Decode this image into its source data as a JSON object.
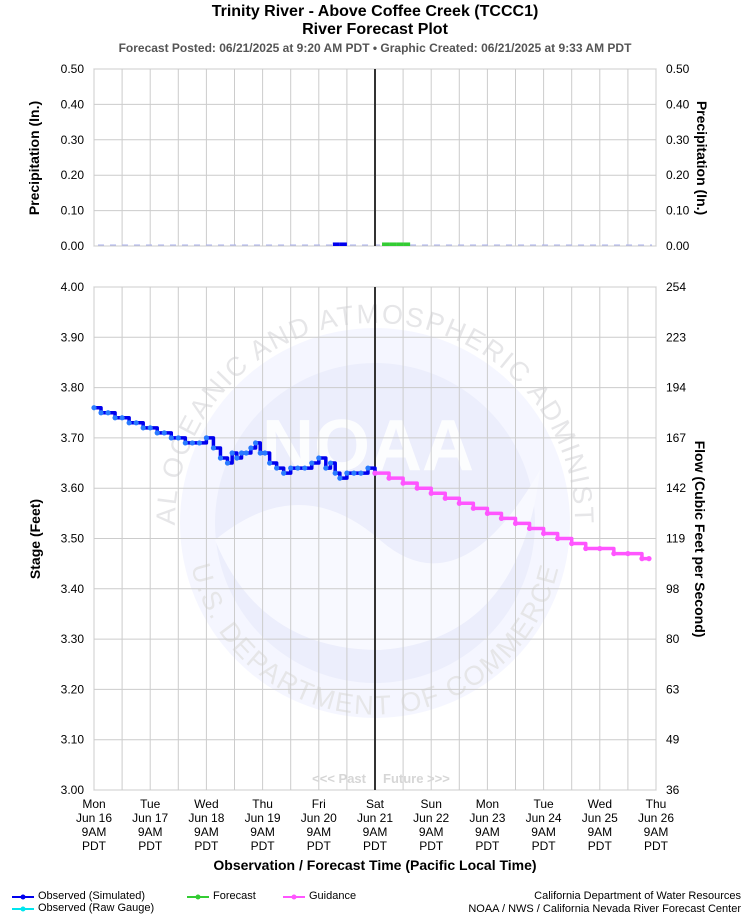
{
  "header": {
    "title_line1": "Trinity River - Above Coffee Creek (TCCC1)",
    "title_line2": "River Forecast Plot",
    "subtitle": "Forecast Posted: 06/21/2025 at 9:20 AM PDT  •  Graphic Created: 06/21/2025 at 9:33 AM PDT"
  },
  "watermark": {
    "logo_text": "NOAA",
    "ring_top": "NATIONAL OCEANIC AND ATMOSPHERIC ADMINISTRATION",
    "ring_bottom": "U.S. DEPARTMENT OF COMMERCE"
  },
  "legend": {
    "observed_simulated": "Observed (Simulated)",
    "observed_raw": "Observed (Raw Gauge)",
    "forecast": "Forecast",
    "guidance": "Guidance"
  },
  "credits": {
    "line1": "California Department of Water Resources",
    "line2": "NOAA / NWS / California Nevada River Forecast Center"
  },
  "colors": {
    "observed": "#0000ee",
    "observed_point": "#2a7bff",
    "raw_gauge": "#00e5ee",
    "forecast": "#33cc33",
    "guidance": "#ff55ff",
    "now_line": "#333333",
    "grid": "#cccccc"
  },
  "chart_data": [
    {
      "type": "bar",
      "panel": "precipitation",
      "ylabel": "Precipitation (In.)",
      "ylabel_right": "Precipitation (In.)",
      "ylim": [
        0,
        0.5
      ],
      "yticks": [
        "0.00",
        "0.10",
        "0.20",
        "0.30",
        "0.40",
        "0.50"
      ],
      "series": [
        {
          "name": "Observed (Simulated)",
          "x": [
            "2025-06-20T15:00",
            "2025-06-20T18:00"
          ],
          "values": [
            0.01,
            0.01
          ]
        },
        {
          "name": "Forecast",
          "x": [
            "2025-06-21T12:00",
            "2025-06-21T15:00",
            "2025-06-21T18:00",
            "2025-06-21T21:00"
          ],
          "values": [
            0.01,
            0.01,
            0.01,
            0.01
          ]
        }
      ],
      "grid": true
    },
    {
      "type": "line",
      "panel": "stage",
      "ylabel": "Stage (Feet)",
      "ylabel_right": "Flow (Cubic Feet per Second)",
      "xlabel": "Observation / Forecast Time (Pacific Local Time)",
      "ylim": [
        3.0,
        4.0
      ],
      "yticks": [
        "3.00",
        "3.10",
        "3.20",
        "3.30",
        "3.40",
        "3.50",
        "3.60",
        "3.70",
        "3.80",
        "3.90",
        "4.00"
      ],
      "flow_ticks": [
        "36",
        "49",
        "63",
        "80",
        "98",
        "119",
        "142",
        "167",
        "194",
        "223",
        "254"
      ],
      "xlim": [
        "2025-06-16T09:00",
        "2025-06-26T09:00"
      ],
      "xticks": [
        {
          "day": "Mon",
          "date": "Jun 16",
          "time": "9AM",
          "tz": "PDT"
        },
        {
          "day": "Tue",
          "date": "Jun 17",
          "time": "9AM",
          "tz": "PDT"
        },
        {
          "day": "Wed",
          "date": "Jun 18",
          "time": "9AM",
          "tz": "PDT"
        },
        {
          "day": "Thu",
          "date": "Jun 19",
          "time": "9AM",
          "tz": "PDT"
        },
        {
          "day": "Fri",
          "date": "Jun 20",
          "time": "9AM",
          "tz": "PDT"
        },
        {
          "day": "Sat",
          "date": "Jun 21",
          "time": "9AM",
          "tz": "PDT"
        },
        {
          "day": "Sun",
          "date": "Jun 22",
          "time": "9AM",
          "tz": "PDT"
        },
        {
          "day": "Mon",
          "date": "Jun 23",
          "time": "9AM",
          "tz": "PDT"
        },
        {
          "day": "Tue",
          "date": "Jun 24",
          "time": "9AM",
          "tz": "PDT"
        },
        {
          "day": "Wed",
          "date": "Jun 25",
          "time": "9AM",
          "tz": "PDT"
        },
        {
          "day": "Thu",
          "date": "Jun 26",
          "time": "9AM",
          "tz": "PDT"
        }
      ],
      "now": "2025-06-21T09:00",
      "past_label": "<<< Past",
      "future_label": "Future >>>",
      "grid": true,
      "series": [
        {
          "name": "Observed (Simulated)",
          "x": [
            "2025-06-16T09:00",
            "2025-06-16T12:00",
            "2025-06-16T15:00",
            "2025-06-16T18:00",
            "2025-06-16T21:00",
            "2025-06-17T00:00",
            "2025-06-17T03:00",
            "2025-06-17T06:00",
            "2025-06-17T09:00",
            "2025-06-17T12:00",
            "2025-06-17T15:00",
            "2025-06-17T18:00",
            "2025-06-17T21:00",
            "2025-06-18T00:00",
            "2025-06-18T03:00",
            "2025-06-18T06:00",
            "2025-06-18T09:00",
            "2025-06-18T12:00",
            "2025-06-18T15:00",
            "2025-06-18T18:00",
            "2025-06-18T20:00",
            "2025-06-18T22:00",
            "2025-06-19T00:00",
            "2025-06-19T02:00",
            "2025-06-19T04:00",
            "2025-06-19T06:00",
            "2025-06-19T08:00",
            "2025-06-19T10:00",
            "2025-06-19T12:00",
            "2025-06-19T15:00",
            "2025-06-19T18:00",
            "2025-06-19T21:00",
            "2025-06-20T00:00",
            "2025-06-20T03:00",
            "2025-06-20T06:00",
            "2025-06-20T09:00",
            "2025-06-20T12:00",
            "2025-06-20T14:00",
            "2025-06-20T16:00",
            "2025-06-20T18:00",
            "2025-06-20T21:00",
            "2025-06-21T00:00",
            "2025-06-21T03:00",
            "2025-06-21T06:00",
            "2025-06-21T09:00"
          ],
          "values": [
            3.76,
            3.75,
            3.75,
            3.74,
            3.74,
            3.73,
            3.73,
            3.72,
            3.72,
            3.71,
            3.71,
            3.7,
            3.7,
            3.69,
            3.69,
            3.69,
            3.7,
            3.68,
            3.66,
            3.65,
            3.67,
            3.66,
            3.67,
            3.67,
            3.68,
            3.69,
            3.67,
            3.67,
            3.65,
            3.64,
            3.63,
            3.64,
            3.64,
            3.64,
            3.65,
            3.66,
            3.64,
            3.65,
            3.63,
            3.62,
            3.63,
            3.63,
            3.63,
            3.64,
            3.63
          ]
        },
        {
          "name": "Guidance",
          "x": [
            "2025-06-21T09:00",
            "2025-06-21T15:00",
            "2025-06-21T21:00",
            "2025-06-22T03:00",
            "2025-06-22T09:00",
            "2025-06-22T15:00",
            "2025-06-22T21:00",
            "2025-06-23T03:00",
            "2025-06-23T09:00",
            "2025-06-23T15:00",
            "2025-06-23T21:00",
            "2025-06-24T03:00",
            "2025-06-24T09:00",
            "2025-06-24T15:00",
            "2025-06-24T21:00",
            "2025-06-25T03:00",
            "2025-06-25T09:00",
            "2025-06-25T15:00",
            "2025-06-25T21:00",
            "2025-06-26T03:00",
            "2025-06-26T06:00"
          ],
          "values": [
            3.63,
            3.62,
            3.61,
            3.6,
            3.59,
            3.58,
            3.57,
            3.56,
            3.55,
            3.54,
            3.53,
            3.52,
            3.51,
            3.5,
            3.49,
            3.48,
            3.48,
            3.47,
            3.47,
            3.46,
            3.46
          ]
        }
      ]
    }
  ]
}
